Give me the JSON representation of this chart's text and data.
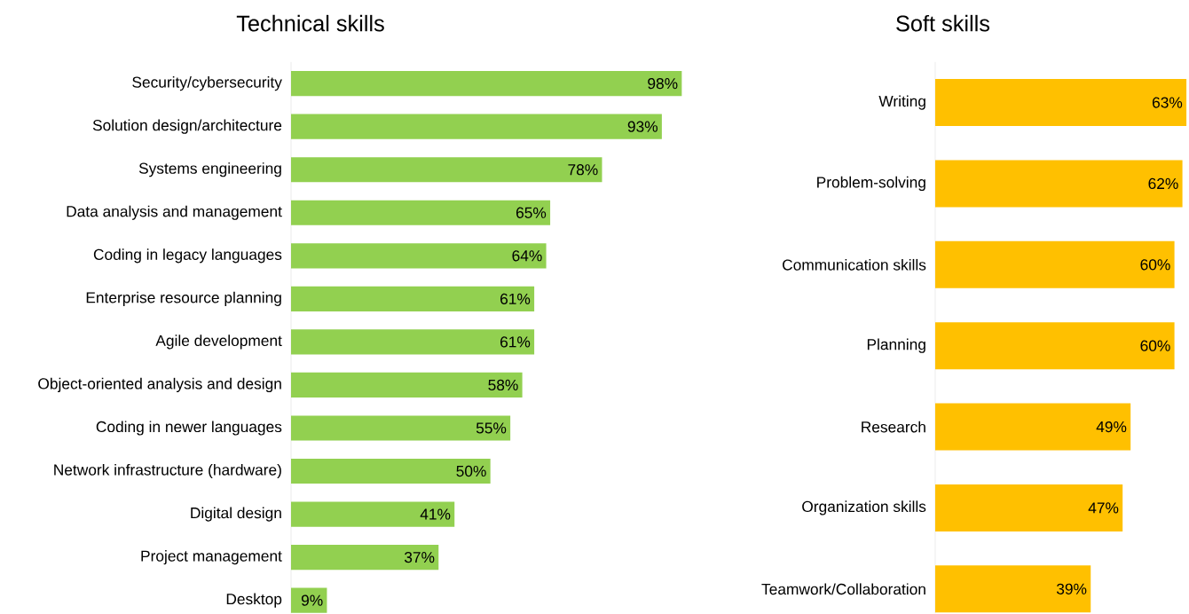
{
  "chart_data": [
    {
      "type": "bar",
      "orientation": "horizontal",
      "title": "Technical skills",
      "color": "#92d050",
      "categories": [
        "Security/cybersecurity",
        "Solution design/architecture",
        "Systems engineering",
        "Data analysis and management",
        "Coding in legacy languages",
        "Enterprise resource planning",
        "Agile development",
        "Object-oriented analysis and design",
        "Coding in newer languages",
        "Network infrastructure (hardware)",
        "Digital design",
        "Project management",
        "Desktop"
      ],
      "values": [
        98,
        93,
        78,
        65,
        64,
        61,
        61,
        58,
        55,
        50,
        41,
        37,
        9
      ],
      "value_labels": [
        "98%",
        "93%",
        "78%",
        "65%",
        "64%",
        "61%",
        "61%",
        "58%",
        "55%",
        "50%",
        "41%",
        "37%",
        "9%"
      ]
    },
    {
      "type": "bar",
      "orientation": "horizontal",
      "title": "Soft skills",
      "color": "#ffc000",
      "categories": [
        "Writing",
        "Problem-solving",
        "Communication skills",
        "Planning",
        "Research",
        "Organization skills",
        "Teamwork/Collaboration"
      ],
      "values": [
        63,
        62,
        60,
        60,
        49,
        47,
        39
      ],
      "value_labels": [
        "63%",
        "62%",
        "60%",
        "60%",
        "49%",
        "47%",
        "39%"
      ]
    }
  ]
}
